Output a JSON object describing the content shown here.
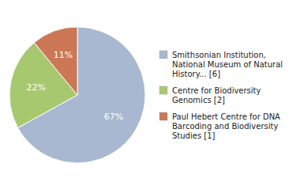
{
  "chart_data": {
    "type": "pie",
    "categories": [
      "Smithsonian Institution,\nNational Museum of Natural\nHistory... [6]",
      "Centre for Biodiversity\nGenomics [2]",
      "Paul Hebert Centre for DNA\nBarcoding and Biodiversity\nStudies [1]"
    ],
    "values": [
      67,
      22,
      11
    ],
    "value_labels": [
      "67%",
      "22%",
      "11%"
    ],
    "colors": [
      "#a8b8d0",
      "#a8c870",
      "#cc7755"
    ],
    "data_labels": true,
    "legend": "right"
  }
}
